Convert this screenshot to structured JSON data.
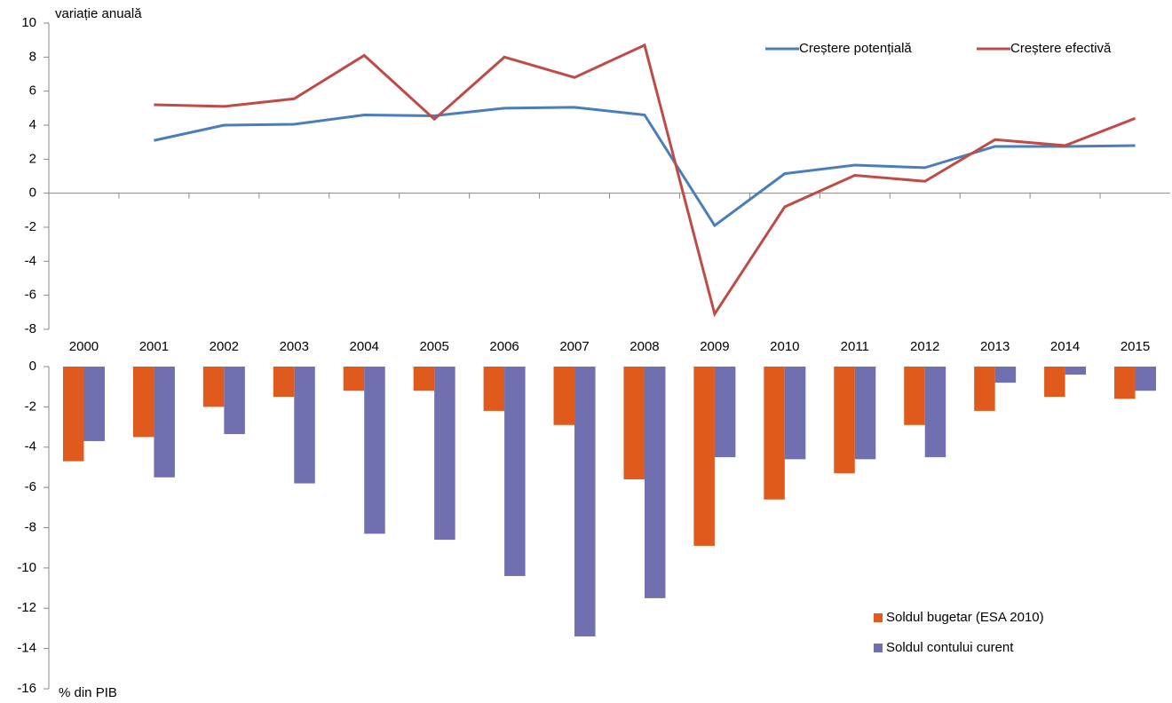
{
  "chart_data": [
    {
      "type": "line",
      "y_label": "variație anuală",
      "ylim": [
        -8,
        10
      ],
      "yticks": [
        -8,
        -6,
        -4,
        -2,
        0,
        2,
        4,
        6,
        8,
        10
      ],
      "legend": "top-right",
      "series": [
        {
          "name": "Creștere potențială",
          "color": "#4a7ebb",
          "values": [
            null,
            3.1,
            4.0,
            4.05,
            4.6,
            4.55,
            5.0,
            5.05,
            4.6,
            -1.9,
            1.15,
            1.65,
            1.5,
            2.75,
            2.75,
            2.8
          ]
        },
        {
          "name": "Creștere efectivă",
          "color": "#be4b48",
          "values": [
            null,
            5.2,
            5.1,
            5.55,
            8.1,
            4.35,
            8.0,
            6.8,
            8.7,
            -7.1,
            -0.8,
            1.05,
            0.7,
            3.15,
            2.8,
            4.4
          ]
        }
      ]
    },
    {
      "type": "bar",
      "y_label": "% din PIB",
      "categories": [
        "2000",
        "2001",
        "2002",
        "2003",
        "2004",
        "2005",
        "2006",
        "2007",
        "2008",
        "2009",
        "2010",
        "2011",
        "2012",
        "2013",
        "2014",
        "2015"
      ],
      "ylim": [
        -16,
        0
      ],
      "yticks": [
        -16,
        -14,
        -12,
        -10,
        -8,
        -6,
        -4,
        -2,
        0
      ],
      "legend": "bottom-right",
      "series": [
        {
          "name": "Soldul bugetar (ESA 2010)",
          "color": "#e05a1e",
          "values": [
            -4.7,
            -3.5,
            -2.0,
            -1.5,
            -1.2,
            -1.2,
            -2.2,
            -2.9,
            -5.6,
            -8.9,
            -6.6,
            -5.3,
            -2.9,
            -2.2,
            -1.5,
            -1.6
          ]
        },
        {
          "name": "Soldul contului curent",
          "color": "#7070b0",
          "values": [
            -3.7,
            -5.5,
            -3.35,
            -5.8,
            -8.3,
            -8.6,
            -10.4,
            -13.4,
            -11.5,
            -4.5,
            -4.6,
            -4.6,
            -4.5,
            -0.8,
            -0.4,
            -1.2
          ]
        }
      ]
    }
  ]
}
